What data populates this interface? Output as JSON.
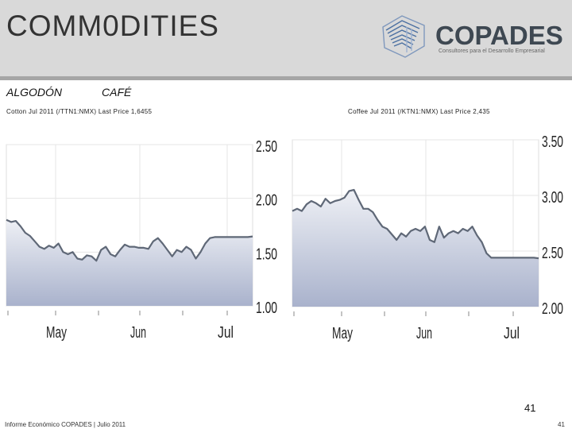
{
  "header": {
    "title": "COMM0DITIES"
  },
  "logo": {
    "name": "COPADES",
    "tagline": "Consultores para el Desarrollo Empresarial"
  },
  "sections": {
    "cotton": "ALGODÓN",
    "coffee": "CAFÉ"
  },
  "captions": {
    "cotton": "Cotton Jul 2011 (/TTN1:NMX) Last Price 1,6455",
    "coffee": "Coffee Jul 2011 (/KTN1:NMX) Last Price 2,435"
  },
  "footer": {
    "text": "Informe Económico COPADES  |  Julio 2011",
    "page_big": "41",
    "page_small": "41"
  },
  "colors": {
    "line": "#5f6877",
    "fill_top": "#eef0f5",
    "fill_bottom": "#a9b2cc",
    "grid": "#e6e6e6",
    "axis": "#888888"
  },
  "chart_data": [
    {
      "type": "area",
      "title": "Cotton Jul 2011 (/TTN1:NMX) Last Price 1,6455",
      "xlabel": "",
      "ylabel": "",
      "x_ticks": [
        "May",
        "Jun",
        "Jul"
      ],
      "y_ticks": [
        "2.50",
        "2.00",
        "1.50",
        "1.00"
      ],
      "ylim": [
        1.0,
        2.5
      ],
      "grid": true,
      "series": [
        {
          "values": [
            1.8,
            1.78,
            1.79,
            1.74,
            1.68,
            1.65,
            1.6,
            1.55,
            1.53,
            1.56,
            1.54,
            1.58,
            1.5,
            1.48,
            1.5,
            1.44,
            1.43,
            1.47,
            1.46,
            1.42,
            1.52,
            1.55,
            1.48,
            1.46,
            1.52,
            1.57,
            1.55,
            1.55,
            1.54,
            1.54,
            1.53,
            1.6,
            1.63,
            1.58,
            1.52,
            1.46,
            1.52,
            1.5,
            1.55,
            1.52,
            1.44,
            1.5,
            1.58,
            1.63,
            1.64,
            1.64,
            1.64,
            1.64,
            1.64,
            1.64,
            1.64,
            1.64,
            1.6455
          ]
        }
      ]
    },
    {
      "type": "area",
      "title": "Coffee Jul 2011 (/KTN1:NMX) Last Price 2,435",
      "xlabel": "",
      "ylabel": "",
      "x_ticks": [
        "May",
        "Jun",
        "Jul"
      ],
      "y_ticks": [
        "3.50",
        "3.00",
        "2.50",
        "2.00"
      ],
      "ylim": [
        2.0,
        3.5
      ],
      "grid": true,
      "series": [
        {
          "values": [
            2.86,
            2.88,
            2.86,
            2.92,
            2.95,
            2.93,
            2.9,
            2.97,
            2.93,
            2.95,
            2.96,
            2.98,
            3.04,
            3.05,
            2.96,
            2.88,
            2.88,
            2.85,
            2.78,
            2.72,
            2.7,
            2.65,
            2.6,
            2.66,
            2.63,
            2.68,
            2.7,
            2.68,
            2.72,
            2.6,
            2.58,
            2.72,
            2.62,
            2.66,
            2.68,
            2.66,
            2.7,
            2.68,
            2.72,
            2.64,
            2.58,
            2.48,
            2.44,
            2.44,
            2.44,
            2.44,
            2.44,
            2.44,
            2.44,
            2.44,
            2.44,
            2.44,
            2.435
          ]
        }
      ]
    }
  ]
}
